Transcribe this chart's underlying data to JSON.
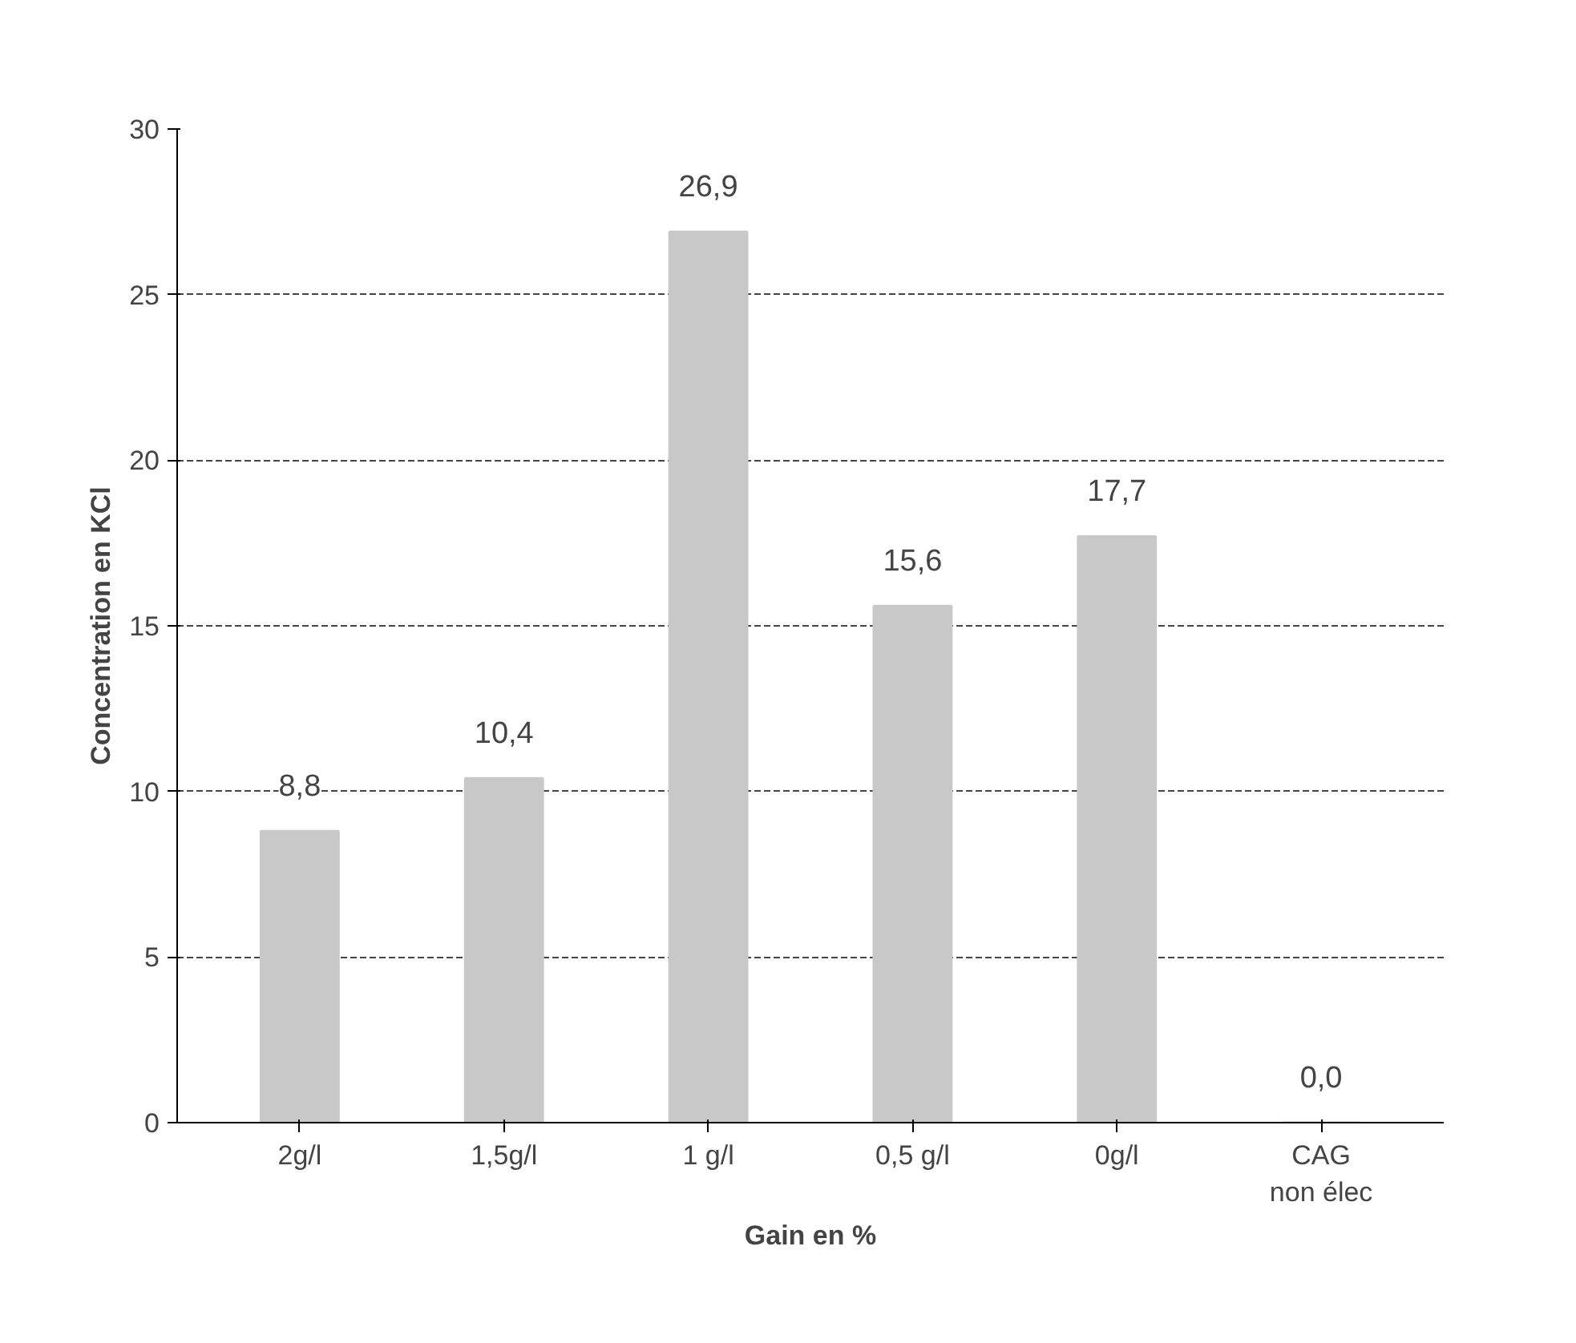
{
  "chart_data": {
    "type": "bar",
    "xlabel": "Gain en %",
    "ylabel": "Concentration en KCl",
    "categories": [
      "2g/l",
      "1,5g/l",
      "1 g/l",
      "0,5 g/l",
      "0g/l",
      "CAG\nnon élec"
    ],
    "values": [
      8.8,
      10.4,
      26.9,
      15.6,
      17.7,
      0.0
    ],
    "value_labels": [
      "8,8",
      "10,4",
      "26,9",
      "15,6",
      "17,7",
      "0,0"
    ],
    "color": "#c8c8c8",
    "ylim": [
      0,
      30
    ],
    "yticks": [
      0,
      5,
      10,
      15,
      20,
      25,
      30
    ],
    "grid": "y"
  }
}
